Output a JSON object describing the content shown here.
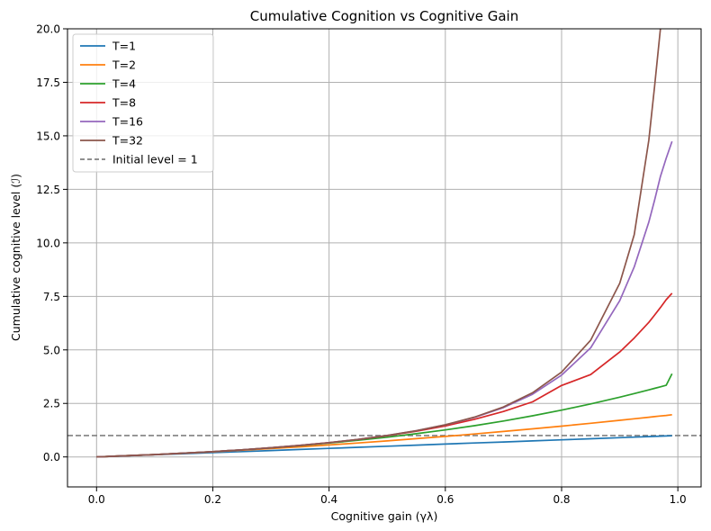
{
  "chart_data": {
    "type": "line",
    "title": "Cumulative Cognition vs Cognitive Gain",
    "xlabel": "Cognitive gain (γλ)",
    "ylabel": "Cumulative cognitive level (ℐ)",
    "xlim": [
      -0.05,
      1.04
    ],
    "ylim": [
      -1.4,
      20.0
    ],
    "xticks": [
      0.0,
      0.2,
      0.4,
      0.6,
      0.8,
      1.0
    ],
    "xtick_labels": [
      "0.0",
      "0.2",
      "0.4",
      "0.6",
      "0.8",
      "1.0"
    ],
    "yticks": [
      0.0,
      2.5,
      5.0,
      7.5,
      10.0,
      12.5,
      15.0,
      17.5,
      20.0
    ],
    "ytick_labels": [
      "0.0",
      "2.5",
      "5.0",
      "7.5",
      "10.0",
      "12.5",
      "15.0",
      "17.5",
      "20.0"
    ],
    "grid": true,
    "legend_position": "top-left",
    "x": [
      0.0,
      0.05,
      0.1,
      0.15,
      0.2,
      0.25,
      0.3,
      0.35,
      0.4,
      0.45,
      0.5,
      0.55,
      0.6,
      0.65,
      0.7,
      0.75,
      0.8,
      0.85,
      0.9,
      0.925,
      0.95,
      0.96,
      0.97,
      0.98,
      0.99
    ],
    "series": [
      {
        "name": "T=1",
        "color": "#1f77b4",
        "values": [
          0.0,
          0.05,
          0.1,
          0.15,
          0.2,
          0.25,
          0.3,
          0.35,
          0.4,
          0.45,
          0.5,
          0.55,
          0.6,
          0.65,
          0.7,
          0.75,
          0.8,
          0.85,
          0.9,
          0.925,
          0.95,
          0.96,
          0.97,
          0.98,
          0.99
        ]
      },
      {
        "name": "T=2",
        "color": "#ff7f0e",
        "values": [
          0.0,
          0.053,
          0.11,
          0.173,
          0.24,
          0.313,
          0.39,
          0.473,
          0.56,
          0.653,
          0.75,
          0.853,
          0.96,
          1.073,
          1.19,
          1.313,
          1.44,
          1.573,
          1.71,
          1.781,
          1.853,
          1.882,
          1.911,
          1.94,
          1.97
        ]
      },
      {
        "name": "T=4",
        "color": "#2ca02c",
        "values": [
          0.0,
          0.053,
          0.111,
          0.176,
          0.25,
          0.332,
          0.425,
          0.529,
          0.646,
          0.776,
          0.922,
          1.083,
          1.262,
          1.46,
          1.679,
          1.922,
          2.186,
          2.476,
          2.791,
          2.958,
          3.132,
          3.203,
          3.275,
          3.348,
          3.891
        ]
      },
      {
        "name": "T=8",
        "color": "#d62728",
        "values": [
          0.0,
          0.053,
          0.111,
          0.176,
          0.25,
          0.333,
          0.428,
          0.538,
          0.664,
          0.814,
          0.992,
          1.198,
          1.446,
          1.758,
          2.122,
          2.573,
          3.34,
          3.848,
          4.904,
          5.555,
          6.287,
          6.624,
          6.98,
          7.347,
          7.648
        ]
      },
      {
        "name": "T=16",
        "color": "#9467bd",
        "values": [
          0.0,
          0.053,
          0.111,
          0.176,
          0.25,
          0.333,
          0.429,
          0.538,
          0.667,
          0.818,
          1.0,
          1.222,
          1.497,
          1.846,
          2.303,
          2.928,
          3.822,
          5.096,
          7.298,
          8.875,
          10.97,
          11.99,
          13.1,
          13.95,
          14.74
        ]
      },
      {
        "name": "T=32",
        "color": "#8c564b",
        "values": [
          0.0,
          0.053,
          0.111,
          0.176,
          0.25,
          0.333,
          0.429,
          0.538,
          0.667,
          0.818,
          1.0,
          1.222,
          1.5,
          1.857,
          2.333,
          2.998,
          3.964,
          5.455,
          8.113,
          10.38,
          14.79,
          17.3,
          20.0,
          null,
          null
        ]
      }
    ],
    "reference_line": {
      "name": "Initial level = 1",
      "y": 1.0,
      "color": "#808080",
      "style": "dashed"
    }
  }
}
